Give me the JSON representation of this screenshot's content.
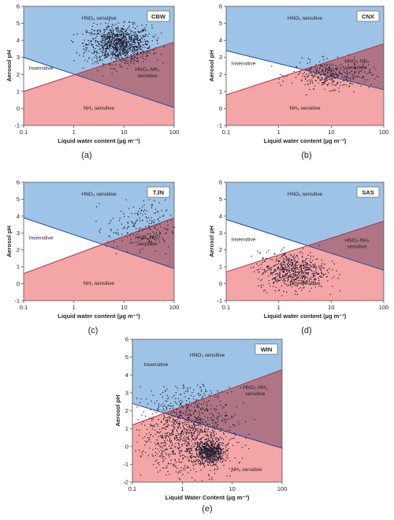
{
  "figure": {
    "ytick_labels": [
      "-1",
      "0",
      "1",
      "2",
      "3",
      "4",
      "5",
      "6"
    ],
    "ytick_labels_win": [
      "-2",
      "-1",
      "0",
      "1",
      "2",
      "3",
      "4",
      "5",
      "6"
    ],
    "xtick_labels": [
      "0.1",
      "1",
      "10",
      "100"
    ]
  },
  "colors": {
    "hno3_region": "#9dc3e6",
    "nh3_region": "#f4a5a5",
    "both_region": "#b07585",
    "insensitive_region": "#ffffff",
    "line_upper": "#1f4e9a",
    "line_lower": "#b0304a",
    "points": "#1a1a2e"
  },
  "chart_data": [
    {
      "type": "scatter",
      "caption": "(a)",
      "site": "CBW",
      "xlabel": "Liquid water content (µg m⁻³)",
      "ylabel": "Aerosol pH",
      "xscale": "log",
      "xlim": [
        0.1,
        100
      ],
      "ylim": [
        -1,
        6
      ],
      "upper_line": {
        "x": [
          0.1,
          100
        ],
        "y": [
          3.0,
          0.05
        ]
      },
      "lower_line": {
        "x": [
          0.1,
          100
        ],
        "y": [
          1.0,
          3.9
        ]
      },
      "region_labels": {
        "top": "HNO₃ sensitive",
        "left": "Insensitive",
        "right": "HNO₃-NH₃ sensitive",
        "bottom": "NH₃ sensitive"
      },
      "cloud": {
        "n": 1100,
        "lx": [
          0.9,
          0.32
        ],
        "y": [
          3.8,
          0.55
        ],
        "lxr": [
          -0.2,
          1.9
        ],
        "yr": [
          1.8,
          5.5
        ]
      }
    },
    {
      "type": "scatter",
      "caption": "(b)",
      "site": "CNX",
      "xlabel": "Liquid water content (µg m⁻³)",
      "ylabel": "Aerosol pH",
      "xscale": "log",
      "xlim": [
        0.1,
        100
      ],
      "ylim": [
        -1,
        6
      ],
      "upper_line": {
        "x": [
          0.1,
          100
        ],
        "y": [
          3.4,
          1.1
        ]
      },
      "lower_line": {
        "x": [
          0.1,
          100
        ],
        "y": [
          0.8,
          3.8
        ]
      },
      "region_labels": {
        "top": "HNO₃ sensitive",
        "left": "Insensitive",
        "right": "HNO₃-NH₃ sensitive",
        "bottom": "NH₃ sensitive"
      },
      "cloud": {
        "n": 380,
        "lx": [
          1.0,
          0.38
        ],
        "y": [
          2.0,
          0.4
        ],
        "lxr": [
          -0.2,
          2.0
        ],
        "yr": [
          0.6,
          3.4
        ]
      }
    },
    {
      "type": "scatter",
      "caption": "(c)",
      "site": "TJN",
      "xlabel": "Liquid water content (µg m⁻³)",
      "ylabel": "Aerosol pH",
      "xscale": "log",
      "xlim": [
        0.1,
        100
      ],
      "ylim": [
        -1,
        6
      ],
      "upper_line": {
        "x": [
          0.1,
          100
        ],
        "y": [
          3.9,
          0.9
        ]
      },
      "lower_line": {
        "x": [
          0.1,
          100
        ],
        "y": [
          0.6,
          3.9
        ]
      },
      "region_labels": {
        "top": "HNO₃ sensitive",
        "left": "Insensitive",
        "right": "HNO₃-NH₃ sensitive",
        "bottom": "NH₃ sensitive"
      },
      "cloud": {
        "n": 230,
        "lx": [
          1.35,
          0.35
        ],
        "y": [
          3.3,
          0.8
        ],
        "lxr": [
          0.3,
          2.0
        ],
        "yr": [
          1.8,
          5.0
        ]
      }
    },
    {
      "type": "scatter",
      "caption": "(d)",
      "site": "SAS",
      "xlabel": "Liquid water content (µg m⁻³)",
      "ylabel": "Aerosol pH",
      "xscale": "log",
      "xlim": [
        0.1,
        100
      ],
      "ylim": [
        -1,
        6
      ],
      "upper_line": {
        "x": [
          0.1,
          100
        ],
        "y": [
          3.8,
          0.8
        ]
      },
      "lower_line": {
        "x": [
          0.1,
          100
        ],
        "y": [
          0.7,
          3.7
        ]
      },
      "region_labels": {
        "top": "HNO₃ sensitive",
        "left": "Insensitive",
        "right": "HNO₃-NH₃ sensitive",
        "bottom": "NH₃ sensitive"
      },
      "cloud": {
        "n": 650,
        "lx": [
          0.25,
          0.32
        ],
        "y": [
          0.8,
          0.55
        ],
        "lxr": [
          -0.6,
          1.3
        ],
        "yr": [
          -0.8,
          2.4
        ]
      }
    },
    {
      "type": "scatter",
      "caption": "(e)",
      "site": "WIN",
      "xlabel": "Liquid Water Content (µg m⁻³)",
      "ylabel": "Aerosol pH",
      "xscale": "log",
      "xlim": [
        0.1,
        100
      ],
      "ylim": [
        -2,
        6
      ],
      "upper_line": {
        "x": [
          0.1,
          100
        ],
        "y": [
          2.4,
          -0.1
        ]
      },
      "lower_line": {
        "x": [
          0.1,
          100
        ],
        "y": [
          1.2,
          4.3
        ]
      },
      "region_labels": {
        "top": "HNO₃ sensitive",
        "left": "Insensitive",
        "right": "HNO₃-NH₃ sensitive",
        "bottom": "NH₃ sensitive"
      },
      "cloud": {
        "n": 1800,
        "lx": [
          0.1,
          0.45
        ],
        "y": [
          0.8,
          1.2
        ],
        "lxr": [
          -0.95,
          1.7
        ],
        "yr": [
          -1.9,
          3.6
        ]
      }
    }
  ]
}
